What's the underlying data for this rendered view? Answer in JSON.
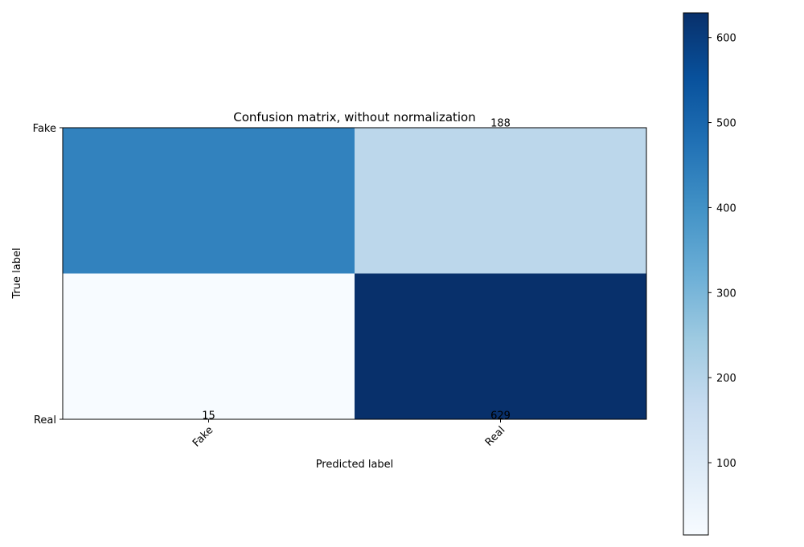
{
  "chart_data": {
    "type": "heatmap",
    "title": "Confusion matrix, without normalization",
    "xlabel": "Predicted label",
    "ylabel": "True label",
    "x_categories": [
      "Fake",
      "Real"
    ],
    "y_categories": [
      "Fake",
      "Real"
    ],
    "values": [
      [
        435,
        188
      ],
      [
        15,
        629
      ]
    ],
    "value_labels": [
      [
        "",
        "188"
      ],
      [
        "15",
        "629"
      ]
    ],
    "colormap": "Blues",
    "colorbar": {
      "range": [
        15,
        629
      ],
      "ticks": [
        100,
        200,
        300,
        400,
        500,
        600
      ]
    },
    "colors": {
      "frame": "#000000",
      "text_light": "#ffffff",
      "text_dark": "#000000"
    }
  }
}
